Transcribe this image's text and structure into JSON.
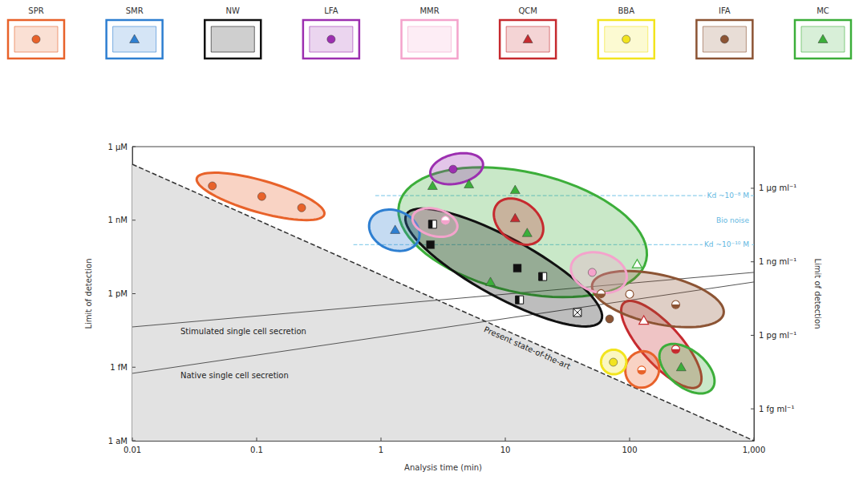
{
  "chart_data": {
    "type": "scatter",
    "x_label": "Analysis time (min)",
    "y_label": "Limit of detection",
    "y2_label": "Limit of detection",
    "log": true,
    "grid": false,
    "xlim": [
      0.01,
      1000
    ],
    "xticks": [
      0.01,
      0.1,
      1,
      10,
      100,
      {
        "value": 1000,
        "label": "1,000"
      }
    ],
    "ylim": [
      1e-18,
      1e-06
    ],
    "yticks": [
      {
        "value": 1e-18,
        "label": "1 aM"
      },
      {
        "value": 1e-15,
        "label": "1 fM"
      },
      {
        "value": 1e-12,
        "label": "1 pM"
      },
      {
        "value": 1e-09,
        "label": "1 nM"
      },
      {
        "value": 1e-06,
        "label": "1 μM"
      }
    ],
    "y2lim": [
      5e-08,
      50000.0
    ],
    "y2ticks": [
      {
        "value": 1e-06,
        "label": "1 fg ml⁻¹"
      },
      {
        "value": 0.001,
        "label": "1 pg ml⁻¹"
      },
      {
        "value": 1,
        "label": "1 ng ml⁻¹"
      },
      {
        "value": 1000,
        "label": "1 μg ml⁻¹"
      }
    ],
    "series": [
      {
        "name": "SPR",
        "color": "#e8622a",
        "points": [
          {
            "marker": "circle",
            "x": [
              0.044,
              0.11,
              0.23
            ],
            "y": [
              2.5e-08,
              9.3e-09,
              3.2e-09
            ]
          },
          {
            "marker": "half-circle",
            "x": [
              125
            ],
            "y": [
              7.6e-16
            ]
          }
        ],
        "regions": [
          {
            "from": [
              0.033,
              5.1e-08
            ],
            "to": [
              0.35,
              1.7e-09
            ],
            "spread": 1.3
          },
          {
            "from": [
              94,
              1.3e-15
            ],
            "to": [
              170,
              5e-16
            ],
            "spread": 1.5
          }
        ]
      },
      {
        "name": "SMR",
        "color": "#2e7fd1",
        "points": [
          {
            "marker": "triangle",
            "x": [
              1.3
            ],
            "y": [
              4e-10
            ]
          }
        ],
        "regions": [
          {
            "from": [
              0.82,
              1e-09
            ],
            "to": [
              2.0,
              1.5e-10
            ],
            "spread": 1.6
          }
        ]
      },
      {
        "name": "NW",
        "color": "#111111",
        "points": [
          {
            "marker": "half-square",
            "x": [
              2.6,
              20,
              13
            ],
            "y": [
              6.8e-10,
              5e-12,
              5.6e-13
            ]
          },
          {
            "marker": "square",
            "x": [
              2.5,
              12.5
            ],
            "y": [
              1e-10,
              1.1e-11
            ]
          },
          {
            "marker": "crossed-square",
            "x": [
              38
            ],
            "y": [
              1.7e-13
            ]
          }
        ],
        "regions": [
          {
            "from": [
              1.6,
              1.7e-09
            ],
            "to": [
              59,
              8e-14
            ],
            "spread": 2.4
          }
        ]
      },
      {
        "name": "LFA",
        "color": "#9c2fb0",
        "points": [
          {
            "marker": "circle",
            "x": [
              3.8
            ],
            "y": [
              1.2e-07
            ]
          }
        ],
        "regions": [
          {
            "from": [
              2.5,
              7.2e-08
            ],
            "to": [
              6.6,
              2.2e-07
            ],
            "spread": 1.2
          }
        ]
      },
      {
        "name": "MMR",
        "color": "#f4a3cc",
        "points": [
          {
            "marker": "half-circle",
            "x": [
              3.3
            ],
            "y": [
              1e-09
            ]
          },
          {
            "marker": "circle",
            "x": [
              50
            ],
            "y": [
              7.4e-12
            ]
          }
        ],
        "regions": [
          {
            "from": [
              1.8,
              1.4e-09
            ],
            "to": [
              4.1,
              4.6e-10
            ],
            "spread": 1.1
          },
          {
            "from": [
              34,
              1.5e-11
            ],
            "to": [
              94,
              3.5e-12
            ],
            "spread": 1.6
          }
        ]
      },
      {
        "name": "QCM",
        "color": "#c62a2f",
        "points": [
          {
            "marker": "triangle",
            "x": [
              12
            ],
            "y": [
              1.2e-09
            ]
          },
          {
            "marker": "open-triangle",
            "x": [
              130
            ],
            "y": [
              8e-14
            ]
          },
          {
            "marker": "half-circle",
            "x": [
              235
            ],
            "y": [
              5.4e-15
            ]
          }
        ],
        "regions": [
          {
            "from": [
              8.6,
              4.5e-09
            ],
            "to": [
              19,
              1.7e-10
            ],
            "spread": 1.6
          },
          {
            "from": [
              90,
              4.2e-13
            ],
            "to": [
              360,
              1.7e-16
            ],
            "spread": 1.6
          }
        ]
      },
      {
        "name": "BBA",
        "color": "#f2e41e",
        "points": [
          {
            "marker": "circle",
            "x": [
              74
            ],
            "y": [
              1.6e-15
            ]
          }
        ],
        "regions": [
          {
            "from": [
              59,
              1.9e-15
            ],
            "to": [
              94,
              1.4e-15
            ],
            "spread": 1.0
          }
        ]
      },
      {
        "name": "IFA",
        "color": "#8c5434",
        "points": [
          {
            "marker": "circle",
            "x": [
              69
            ],
            "y": [
              9.3e-14
            ]
          },
          {
            "marker": "half-circle",
            "x": [
              59,
              235
            ],
            "y": [
              1e-12,
              3.6e-13
            ]
          },
          {
            "marker": "open-circle",
            "x": [
              100
            ],
            "y": [
              9.5e-13
            ]
          }
        ],
        "regions": [
          {
            "from": [
              50,
              2.4e-12
            ],
            "to": [
              570,
              1.5e-13
            ],
            "spread": 2.0
          }
        ]
      },
      {
        "name": "MC",
        "color": "#3cae3a",
        "points": [
          {
            "marker": "triangle",
            "x": [
              2.6,
              5.1,
              12,
              15,
              7.6,
              260
            ],
            "y": [
              2.5e-08,
              2.9e-08,
              1.7e-08,
              3e-10,
              3e-12,
              1e-15
            ]
          },
          {
            "marker": "open-triangle",
            "x": [
              115
            ],
            "y": [
              1.6e-11
            ]
          }
        ],
        "regions": [
          {
            "from": [
              1.4,
              4.5e-09
            ],
            "to": [
              136,
              2.3e-11
            ],
            "spread": 4.9
          },
          {
            "from": [
              182,
              5.8e-15
            ],
            "to": [
              460,
              1.3e-16
            ],
            "spread": 1.5
          }
        ]
      }
    ],
    "state_of_the_art": {
      "label": "Present state-of-the-art",
      "x": [
        0.01,
        1000
      ],
      "y": [
        1.9e-07,
        1e-18
      ],
      "line_style": "dashed"
    },
    "secretion_lines": [
      {
        "label": "Stimulated single cell secretion",
        "x": [
          0.01,
          1000
        ],
        "y": [
          4.4e-14,
          7.4e-12
        ],
        "line_style": "solid"
      },
      {
        "label": "Native single cell secretion",
        "x": [
          0.01,
          1000
        ],
        "y": [
          5.6e-16,
          3e-12
        ],
        "line_style": "solid"
      }
    ],
    "affinity_lines": [
      {
        "label": "Kd ~10⁻⁸ M",
        "x": [
          0.9,
          1000
        ],
        "y": [
          1e-08,
          1e-08
        ],
        "line_style": "dashed"
      },
      {
        "label": "Kd ~10⁻¹⁰ M",
        "x": [
          0.6,
          1000
        ],
        "y": [
          1e-10,
          1e-10
        ],
        "line_style": "dashed"
      }
    ],
    "noise_band_label": "Bio noise"
  }
}
